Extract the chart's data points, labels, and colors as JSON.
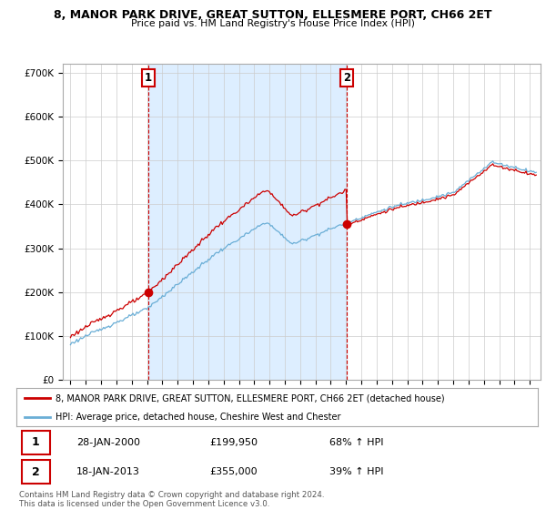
{
  "title": "8, MANOR PARK DRIVE, GREAT SUTTON, ELLESMERE PORT, CH66 2ET",
  "subtitle": "Price paid vs. HM Land Registry's House Price Index (HPI)",
  "ylim": [
    0,
    720000
  ],
  "yticks": [
    0,
    100000,
    200000,
    300000,
    400000,
    500000,
    600000,
    700000
  ],
  "sale1_date": 2000.07,
  "sale1_price": 199950,
  "sale1_label": "1",
  "sale1_text": "28-JAN-2000",
  "sale1_amount": "£199,950",
  "sale1_pct": "68% ↑ HPI",
  "sale2_date": 2013.05,
  "sale2_price": 355000,
  "sale2_label": "2",
  "sale2_text": "18-JAN-2013",
  "sale2_amount": "£355,000",
  "sale2_pct": "39% ↑ HPI",
  "hpi_color": "#6aaed6",
  "property_color": "#cc0000",
  "vline_color": "#cc0000",
  "shade_color": "#ddeeff",
  "legend_box_color": "#cc0000",
  "footer": "Contains HM Land Registry data © Crown copyright and database right 2024.\nThis data is licensed under the Open Government Licence v3.0.",
  "legend1": "8, MANOR PARK DRIVE, GREAT SUTTON, ELLESMERE PORT, CH66 2ET (detached house)",
  "legend2": "HPI: Average price, detached house, Cheshire West and Chester"
}
